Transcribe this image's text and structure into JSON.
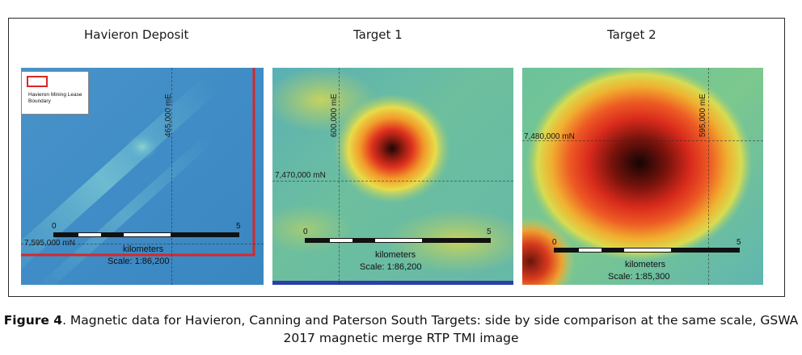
{
  "panels": [
    {
      "title": "Havieron Deposit",
      "easting": "465,000  mE",
      "northing": "7,595,000  mN",
      "scale_start": "0",
      "scale_end": "5",
      "scale_unit": "kilometers",
      "scale_text": "Scale: 1:86,200",
      "legend": "Havieron Mining Lease Boundary",
      "colors": {
        "boundary": "#d62828"
      }
    },
    {
      "title": "Target 1",
      "easting": "600,000  mE",
      "northing": "7,470,000  mN",
      "scale_start": "0",
      "scale_end": "5",
      "scale_unit": "kilometers",
      "scale_text": "Scale: 1:86,200"
    },
    {
      "title": "Target 2",
      "easting": "595,000  mE",
      "northing": "7,480,000  mN",
      "scale_start": "0",
      "scale_end": "5",
      "scale_unit": "kilometers",
      "scale_text": "Scale: 1:85,300"
    }
  ],
  "caption": {
    "label": "Figure 4",
    "text": ". Magnetic data for Havieron, Canning and Paterson South Targets: side by side comparison at the same scale, GSWA 2017 magnetic merge RTP TMI image"
  }
}
